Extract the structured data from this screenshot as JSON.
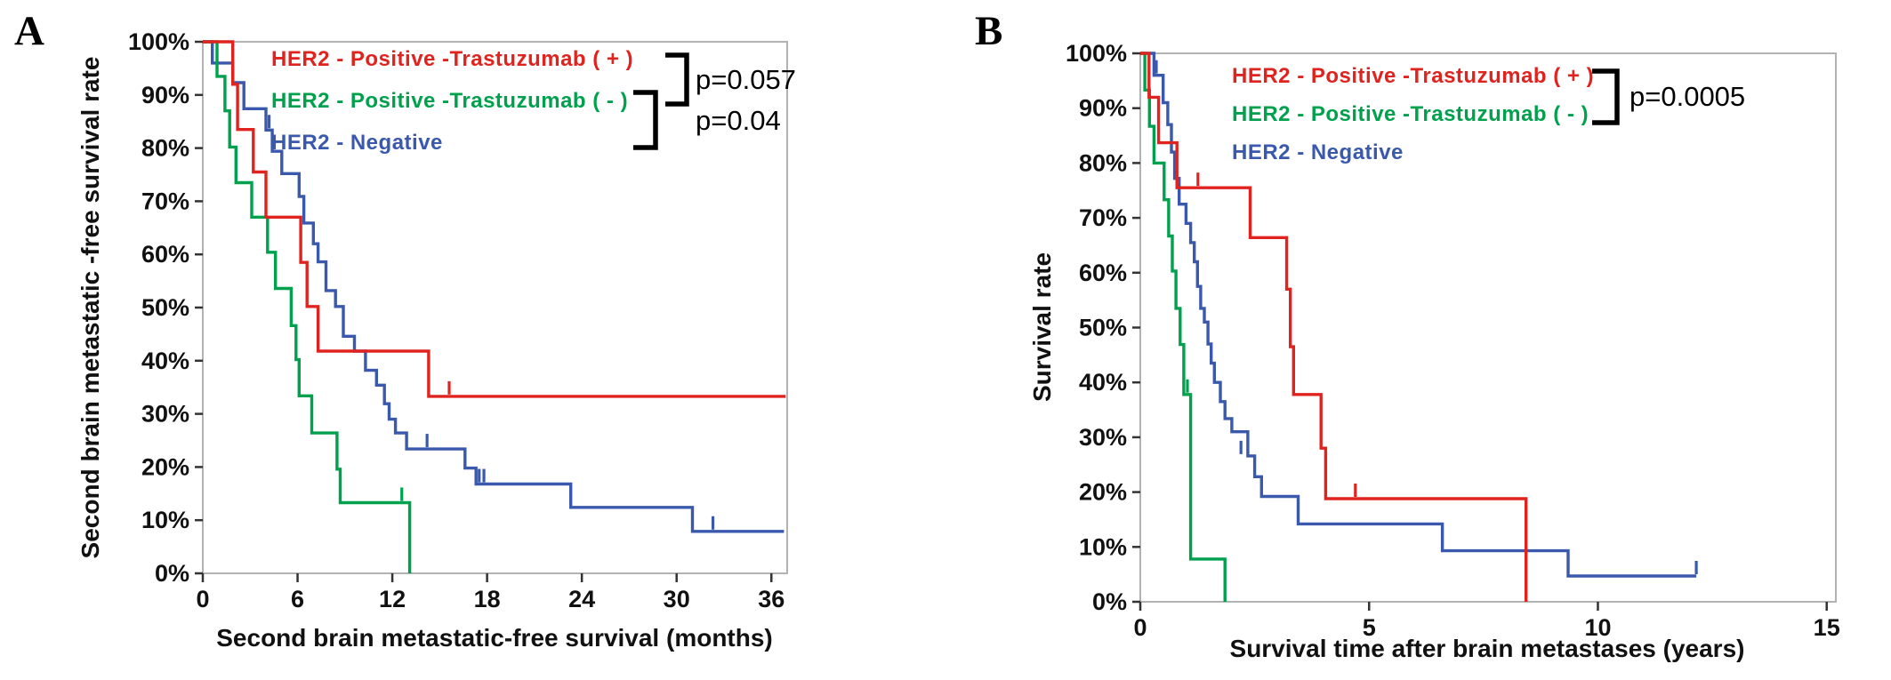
{
  "figure": {
    "background": "#ffffff",
    "axis_color": "#b2b2b2",
    "tick_color": "#333333"
  },
  "chart_data": [
    {
      "type": "line",
      "subtype": "kaplan-meier-step",
      "panel_label": "A",
      "xlabel": "Second brain metastatic-free survival (months)",
      "ylabel": "Second brain metastatic -free survival rate",
      "xlim": [
        0,
        37
      ],
      "ylim": [
        0,
        100
      ],
      "grid": false,
      "legend_position": "top-inside",
      "xticks": [
        {
          "value": 0,
          "label": "0"
        },
        {
          "value": 6,
          "label": "6"
        },
        {
          "value": 12,
          "label": "12"
        },
        {
          "value": 18,
          "label": "18"
        },
        {
          "value": 24,
          "label": "24"
        },
        {
          "value": 30,
          "label": "30"
        },
        {
          "value": 36,
          "label": "36"
        }
      ],
      "yticks": [
        {
          "value": 100,
          "label": "100%"
        },
        {
          "value": 90,
          "label": "90%"
        },
        {
          "value": 80,
          "label": "80%"
        },
        {
          "value": 70,
          "label": "70%"
        },
        {
          "value": 60,
          "label": "60%"
        },
        {
          "value": 50,
          "label": "50%"
        },
        {
          "value": 40,
          "label": "40%"
        },
        {
          "value": 30,
          "label": "30%"
        },
        {
          "value": 20,
          "label": "20%"
        },
        {
          "value": 10,
          "label": "10%"
        },
        {
          "value": 0,
          "label": "0%"
        }
      ],
      "legend": [
        {
          "label": "HER2 - Positive -Trastuzumab ( + )",
          "color": "#e0231e"
        },
        {
          "label": "HER2 - Positive -Trastuzumab ( - )",
          "color": "#00a14d"
        },
        {
          "label": "HER2 - Negative",
          "color": "#3a59ac"
        }
      ],
      "p_annotations": [
        {
          "text": "p=0.057"
        },
        {
          "text": "p=0.04"
        }
      ],
      "series": [
        {
          "key": "her2-positive-trastuzumab-plus",
          "name": "HER2 - Positive -Trastuzumab ( + )",
          "color": "#e0231e",
          "steps": [
            [
              0,
              100
            ],
            [
              1.9,
              92
            ],
            [
              2.2,
              83.5
            ],
            [
              3.2,
              75.5
            ],
            [
              4.0,
              67
            ],
            [
              6.2,
              58.5
            ],
            [
              6.6,
              50.2
            ],
            [
              7.3,
              41.8
            ],
            [
              14.3,
              33.3
            ]
          ],
          "end_x": 36.9,
          "censors": [
            [
              15.6,
              33.3
            ]
          ]
        },
        {
          "key": "her2-positive-trastuzumab-minus",
          "name": "HER2 - Positive -Trastuzumab ( - )",
          "color": "#00a14d",
          "steps": [
            [
              0,
              100
            ],
            [
              0.9,
              93.5
            ],
            [
              1.4,
              87
            ],
            [
              1.7,
              80.2
            ],
            [
              2.1,
              73.5
            ],
            [
              3.1,
              67
            ],
            [
              4.1,
              60.4
            ],
            [
              4.6,
              53.6
            ],
            [
              5.6,
              46.6
            ],
            [
              5.9,
              40.2
            ],
            [
              6.1,
              33.4
            ],
            [
              6.9,
              26.4
            ],
            [
              8.5,
              19.6
            ],
            [
              8.7,
              13.3
            ],
            [
              13.1,
              0
            ]
          ],
          "end_x": null,
          "censors": [
            [
              12.6,
              13.3
            ]
          ]
        },
        {
          "key": "her2-negative",
          "name": "HER2 - Negative",
          "color": "#3a59ac",
          "steps": [
            [
              0,
              100
            ],
            [
              0.6,
              96
            ],
            [
              1.9,
              92.3
            ],
            [
              2.6,
              87.4
            ],
            [
              4.0,
              83.4
            ],
            [
              4.4,
              79.4
            ],
            [
              5.0,
              75.2
            ],
            [
              6.1,
              70.9
            ],
            [
              6.4,
              65.9
            ],
            [
              7.0,
              62
            ],
            [
              7.3,
              58.6
            ],
            [
              7.8,
              53.2
            ],
            [
              8.4,
              50.2
            ],
            [
              8.9,
              44.6
            ],
            [
              9.6,
              41.8
            ],
            [
              10.3,
              38.2
            ],
            [
              11.0,
              35.4
            ],
            [
              11.5,
              31.9
            ],
            [
              11.8,
              29
            ],
            [
              12.2,
              26.4
            ],
            [
              12.9,
              23.4
            ],
            [
              16.6,
              19.8
            ],
            [
              17.3,
              16.8
            ],
            [
              23.3,
              12.4
            ],
            [
              31.0,
              7.9
            ]
          ],
          "end_x": 36.8,
          "censors": [
            [
              4.2,
              83.4
            ],
            [
              14.2,
              23.4
            ],
            [
              17.5,
              16.8
            ],
            [
              17.8,
              16.8
            ],
            [
              32.3,
              7.9
            ]
          ]
        }
      ]
    },
    {
      "type": "line",
      "subtype": "kaplan-meier-step",
      "panel_label": "B",
      "xlabel": "Survival time after brain metastases (years)",
      "ylabel": "Survival rate",
      "xlim": [
        0,
        15.2
      ],
      "ylim": [
        0,
        100
      ],
      "grid": false,
      "legend_position": "top-inside",
      "xticks": [
        {
          "value": 0,
          "label": "0"
        },
        {
          "value": 5,
          "label": "5"
        },
        {
          "value": 10,
          "label": "10"
        },
        {
          "value": 15,
          "label": "15"
        }
      ],
      "yticks": [
        {
          "value": 100,
          "label": "100%"
        },
        {
          "value": 90,
          "label": "90%"
        },
        {
          "value": 80,
          "label": "80%"
        },
        {
          "value": 70,
          "label": "70%"
        },
        {
          "value": 60,
          "label": "60%"
        },
        {
          "value": 50,
          "label": "50%"
        },
        {
          "value": 40,
          "label": "40%"
        },
        {
          "value": 30,
          "label": "30%"
        },
        {
          "value": 20,
          "label": "20%"
        },
        {
          "value": 10,
          "label": "10%"
        },
        {
          "value": 0,
          "label": "0%"
        }
      ],
      "legend": [
        {
          "label": "HER2 - Positive -Trastuzumab ( + )",
          "color": "#e0231e"
        },
        {
          "label": "HER2 - Positive -Trastuzumab ( - )",
          "color": "#00a14d"
        },
        {
          "label": "HER2 - Negative",
          "color": "#3a59ac"
        }
      ],
      "p_annotations": [
        {
          "text": "p=0.0005"
        }
      ],
      "series": [
        {
          "key": "her2-positive-trastuzumab-plus",
          "name": "HER2 - Positive -Trastuzumab ( + )",
          "color": "#e0231e",
          "steps": [
            [
              0,
              100
            ],
            [
              0.19,
              92
            ],
            [
              0.4,
              83.7
            ],
            [
              0.8,
              75.5
            ],
            [
              2.4,
              66.4
            ],
            [
              3.2,
              57
            ],
            [
              3.28,
              46.5
            ],
            [
              3.35,
              37.8
            ],
            [
              3.95,
              28
            ],
            [
              4.05,
              18.8
            ],
            [
              8.43,
              0
            ]
          ],
          "end_x": null,
          "censors": [
            [
              1.26,
              75.5
            ],
            [
              4.7,
              18.8
            ]
          ]
        },
        {
          "key": "her2-positive-trastuzumab-minus",
          "name": "HER2 - Positive -Trastuzumab ( - )",
          "color": "#00a14d",
          "steps": [
            [
              0,
              100
            ],
            [
              0.1,
              93.3
            ],
            [
              0.2,
              86.7
            ],
            [
              0.3,
              80
            ],
            [
              0.52,
              73.3
            ],
            [
              0.62,
              66.7
            ],
            [
              0.7,
              60.3
            ],
            [
              0.78,
              53.5
            ],
            [
              0.87,
              46.9
            ],
            [
              0.95,
              37.8
            ],
            [
              1.1,
              7.8
            ],
            [
              1.85,
              0
            ]
          ],
          "end_x": null,
          "censors": [
            [
              1.03,
              37.8
            ]
          ]
        },
        {
          "key": "her2-negative",
          "name": "HER2 - Negative",
          "color": "#3a59ac",
          "steps": [
            [
              0,
              100
            ],
            [
              0.3,
              96
            ],
            [
              0.5,
              91
            ],
            [
              0.6,
              87
            ],
            [
              0.68,
              82
            ],
            [
              0.75,
              77.2
            ],
            [
              0.85,
              72.5
            ],
            [
              1.0,
              69
            ],
            [
              1.1,
              65.5
            ],
            [
              1.18,
              62
            ],
            [
              1.25,
              57.5
            ],
            [
              1.32,
              53.5
            ],
            [
              1.4,
              51
            ],
            [
              1.48,
              47
            ],
            [
              1.55,
              43.5
            ],
            [
              1.62,
              40
            ],
            [
              1.75,
              36.5
            ],
            [
              1.85,
              33.4
            ],
            [
              2.0,
              31
            ],
            [
              2.35,
              26.6
            ],
            [
              2.5,
              22.8
            ],
            [
              2.65,
              19.2
            ],
            [
              3.45,
              14.2
            ],
            [
              6.6,
              9.3
            ],
            [
              9.35,
              4.7
            ]
          ],
          "end_x": 12.15,
          "censors": [
            [
              0.35,
              96
            ],
            [
              2.2,
              26.6
            ],
            [
              12.15,
              4.7
            ]
          ]
        }
      ]
    }
  ]
}
